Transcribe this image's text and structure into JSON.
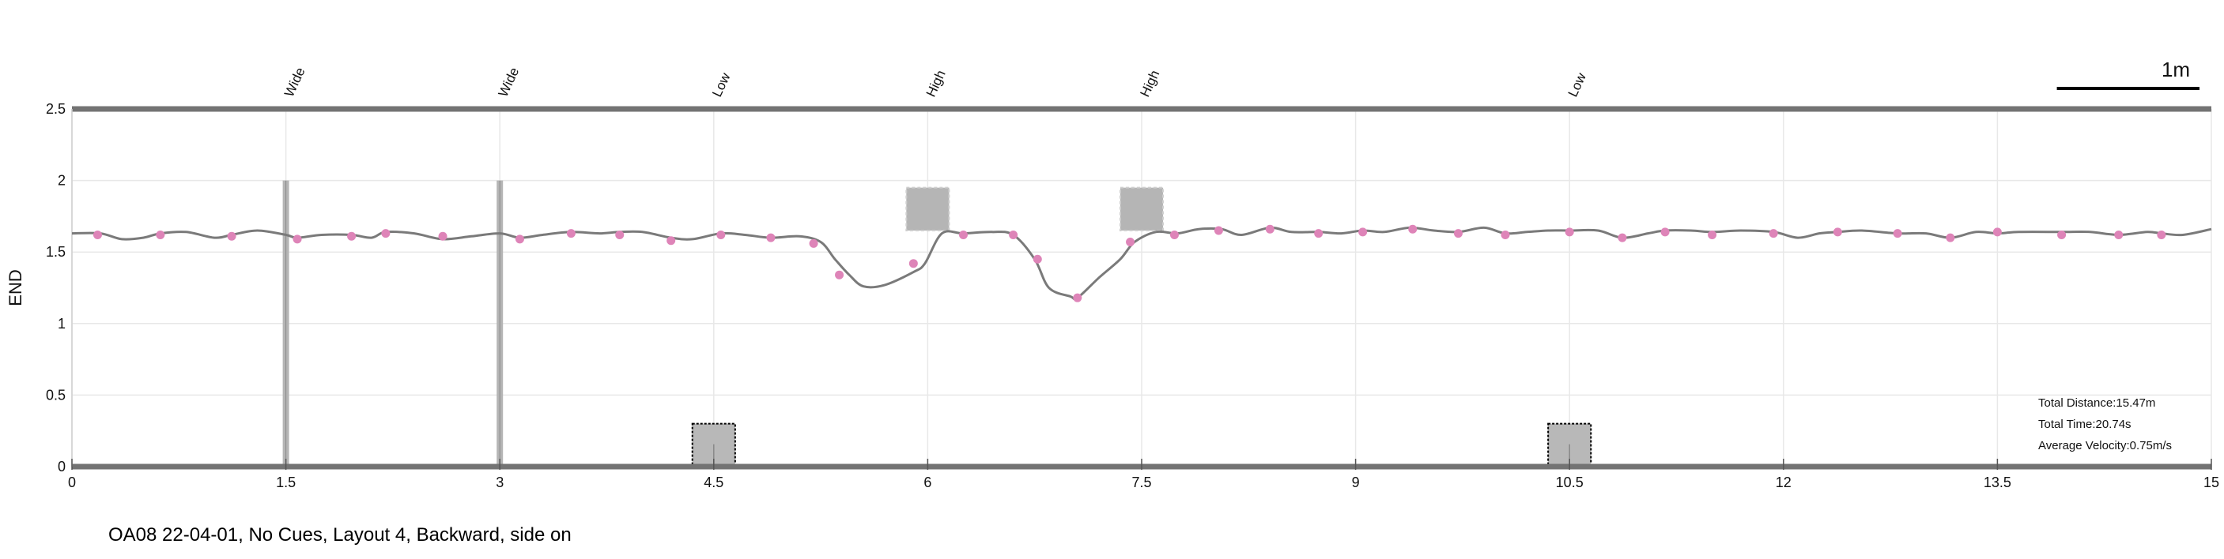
{
  "chart_data": {
    "type": "line",
    "xlim": [
      0,
      15
    ],
    "ylim": [
      0,
      2.5
    ],
    "xticks": [
      0,
      1.5,
      3,
      4.5,
      6,
      7.5,
      9,
      10.5,
      12,
      13.5,
      15
    ],
    "xtick_labels": [
      "0",
      "1.5",
      "3",
      "4.5",
      "6",
      "7.5",
      "9",
      "10.5",
      "12",
      "13.5",
      "15"
    ],
    "yticks": [
      0,
      0.5,
      1,
      1.5,
      2,
      2.5
    ],
    "ytick_labels": [
      "0",
      "0.5",
      "1",
      "1.5",
      "2",
      "2.5"
    ],
    "ylabel": "END",
    "xlabel": "",
    "grid": true,
    "scale_bar_label": "1m",
    "scale_bar_length": 1,
    "obstacle_labels": [
      {
        "x": 1.5,
        "text": "Wide"
      },
      {
        "x": 3.0,
        "text": "Wide"
      },
      {
        "x": 4.5,
        "text": "Low"
      },
      {
        "x": 6.0,
        "text": "High"
      },
      {
        "x": 7.5,
        "text": "High"
      },
      {
        "x": 10.5,
        "text": "Low"
      }
    ],
    "obstacles": [
      {
        "kind": "wide",
        "x": 1.5,
        "y0": 0,
        "y1": 2.0
      },
      {
        "kind": "wide",
        "x": 3.0,
        "y0": 0,
        "y1": 2.0
      },
      {
        "kind": "low",
        "x0": 4.35,
        "x1": 4.65,
        "y0": 0,
        "y1": 0.3
      },
      {
        "kind": "high",
        "x0": 5.85,
        "x1": 6.15,
        "y0": 1.65,
        "y1": 1.95
      },
      {
        "kind": "high",
        "x0": 7.35,
        "x1": 7.65,
        "y0": 1.65,
        "y1": 1.95
      },
      {
        "kind": "low",
        "x0": 10.35,
        "x1": 10.65,
        "y0": 0,
        "y1": 0.3
      }
    ],
    "series": [
      {
        "color": "#7a7a7a",
        "x": [
          0.0,
          0.2,
          0.35,
          0.5,
          0.62,
          0.8,
          1.0,
          1.12,
          1.3,
          1.5,
          1.58,
          1.75,
          1.96,
          2.1,
          2.2,
          2.4,
          2.6,
          2.8,
          3.0,
          3.14,
          3.3,
          3.5,
          3.7,
          3.84,
          4.0,
          4.2,
          4.35,
          4.55,
          4.72,
          4.9,
          5.1,
          5.25,
          5.35,
          5.45,
          5.55,
          5.7,
          5.9,
          5.98,
          6.1,
          6.25,
          6.45,
          6.6,
          6.75,
          6.85,
          7.0,
          7.05,
          7.2,
          7.35,
          7.45,
          7.6,
          7.75,
          7.9,
          8.06,
          8.2,
          8.4,
          8.55,
          8.74,
          8.9,
          9.05,
          9.2,
          9.38,
          9.55,
          9.72,
          9.9,
          10.05,
          10.2,
          10.35,
          10.5,
          10.7,
          10.87,
          11.05,
          11.17,
          11.35,
          11.5,
          11.7,
          11.93,
          12.1,
          12.25,
          12.38,
          12.55,
          12.8,
          13.0,
          13.17,
          13.35,
          13.5,
          13.65,
          13.95,
          14.15,
          14.35,
          14.55,
          14.65,
          14.8,
          15.0
        ],
        "y": [
          1.63,
          1.63,
          1.59,
          1.6,
          1.63,
          1.64,
          1.6,
          1.62,
          1.65,
          1.62,
          1.6,
          1.62,
          1.62,
          1.6,
          1.64,
          1.63,
          1.59,
          1.61,
          1.63,
          1.6,
          1.62,
          1.64,
          1.63,
          1.64,
          1.64,
          1.6,
          1.59,
          1.63,
          1.62,
          1.6,
          1.61,
          1.57,
          1.45,
          1.34,
          1.26,
          1.27,
          1.36,
          1.42,
          1.63,
          1.63,
          1.64,
          1.62,
          1.45,
          1.25,
          1.19,
          1.18,
          1.32,
          1.45,
          1.57,
          1.64,
          1.63,
          1.66,
          1.66,
          1.62,
          1.67,
          1.64,
          1.64,
          1.63,
          1.65,
          1.64,
          1.67,
          1.65,
          1.64,
          1.67,
          1.63,
          1.64,
          1.65,
          1.65,
          1.65,
          1.6,
          1.63,
          1.65,
          1.65,
          1.64,
          1.65,
          1.64,
          1.6,
          1.63,
          1.64,
          1.65,
          1.63,
          1.63,
          1.6,
          1.64,
          1.63,
          1.64,
          1.64,
          1.64,
          1.62,
          1.64,
          1.63,
          1.62,
          1.66
        ]
      },
      {
        "type": "scatter",
        "color": "#de84b8",
        "x": [
          0.18,
          0.62,
          1.12,
          1.58,
          1.96,
          2.2,
          2.6,
          3.14,
          3.5,
          3.84,
          4.2,
          4.55,
          4.9,
          5.2,
          5.38,
          5.9,
          6.25,
          6.6,
          6.77,
          7.05,
          7.42,
          7.73,
          8.04,
          8.4,
          8.74,
          9.05,
          9.4,
          9.72,
          10.05,
          10.5,
          10.87,
          11.17,
          11.5,
          11.93,
          12.38,
          12.8,
          13.17,
          13.5,
          13.95,
          14.35,
          14.65
        ],
        "y": [
          1.62,
          1.62,
          1.61,
          1.59,
          1.61,
          1.63,
          1.61,
          1.59,
          1.63,
          1.62,
          1.58,
          1.62,
          1.6,
          1.56,
          1.34,
          1.42,
          1.62,
          1.62,
          1.45,
          1.18,
          1.57,
          1.62,
          1.65,
          1.66,
          1.63,
          1.64,
          1.66,
          1.63,
          1.62,
          1.64,
          1.6,
          1.64,
          1.62,
          1.63,
          1.64,
          1.63,
          1.6,
          1.64,
          1.62,
          1.62,
          1.62
        ]
      }
    ],
    "annotation": [
      {
        "label": "Total Distance:",
        "value": "15.47m"
      },
      {
        "label": "Total Time:",
        "value": "20.74s"
      },
      {
        "label": "Average Velocity:",
        "value": "0.75m/s"
      }
    ]
  },
  "caption": "OA08 22-04-01, No Cues, Layout 4, Backward, side on"
}
